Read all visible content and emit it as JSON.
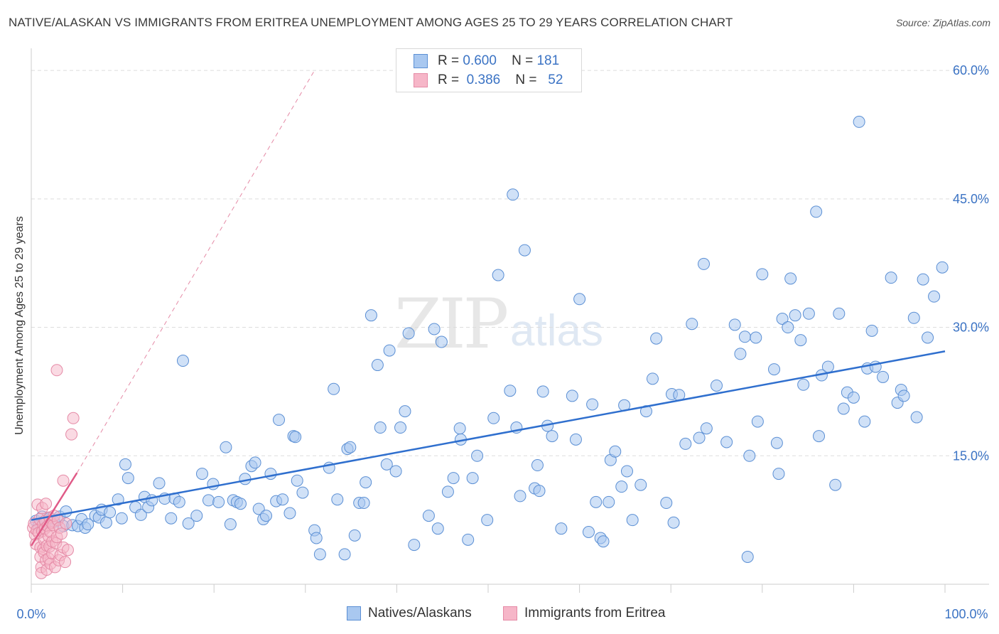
{
  "header": {
    "title": "NATIVE/ALASKAN VS IMMIGRANTS FROM ERITREA UNEMPLOYMENT AMONG AGES 25 TO 29 YEARS CORRELATION CHART",
    "source": "Source: ZipAtlas.com"
  },
  "watermark": {
    "part1": "ZIP",
    "part2": "atlas"
  },
  "legend_top": {
    "rows": [
      {
        "r_label": "R =",
        "r_value": "0.600",
        "n_label": "N =",
        "n_value": "181"
      },
      {
        "r_label": "R =",
        "r_value": "0.386",
        "n_label": "N =",
        "n_value": "52"
      }
    ]
  },
  "colors": {
    "blue_fill": "#a9c8f0",
    "blue_stroke": "#5b8fd4",
    "blue_line": "#2f6fce",
    "pink_fill": "#f6b6c8",
    "pink_stroke": "#e58aa6",
    "pink_line": "#e05a87",
    "grid": "#dddddd",
    "tick_label": "#3b73c4"
  },
  "chart_data": {
    "type": "scatter",
    "title": "NATIVE/ALASKAN VS IMMIGRANTS FROM ERITREA UNEMPLOYMENT AMONG AGES 25 TO 29 YEARS CORRELATION CHART",
    "xlabel": "",
    "ylabel": "Unemployment Among Ages 25 to 29 years",
    "xlim": [
      0,
      100
    ],
    "ylim": [
      0,
      62
    ],
    "x_tick_labels": [
      "0.0%",
      "100.0%"
    ],
    "y_ticks": [
      15,
      30,
      45,
      60
    ],
    "y_tick_labels": [
      "15.0%",
      "30.0%",
      "45.0%",
      "60.0%"
    ],
    "grid": true,
    "legend_position": "bottom",
    "series": [
      {
        "name": "Natives/Alaskans",
        "trend": {
          "x": [
            0,
            100
          ],
          "y": [
            7.5,
            27.2
          ],
          "style": "solid"
        },
        "points": [
          [
            0.5,
            7.4
          ],
          [
            0.8,
            6.8
          ],
          [
            1.2,
            7.9
          ],
          [
            1.6,
            7.2
          ],
          [
            2.0,
            7.7
          ],
          [
            2.5,
            7.3
          ],
          [
            3.1,
            7.9
          ],
          [
            3.5,
            6.8
          ],
          [
            3.8,
            8.5
          ],
          [
            4.5,
            6.9
          ],
          [
            5.1,
            6.8
          ],
          [
            5.5,
            7.6
          ],
          [
            5.9,
            6.6
          ],
          [
            6.2,
            7.0
          ],
          [
            7.0,
            8.0
          ],
          [
            7.4,
            7.8
          ],
          [
            7.7,
            8.7
          ],
          [
            8.2,
            7.2
          ],
          [
            8.6,
            8.4
          ],
          [
            9.5,
            9.9
          ],
          [
            9.9,
            7.7
          ],
          [
            10.3,
            14.0
          ],
          [
            10.6,
            12.4
          ],
          [
            11.4,
            9.0
          ],
          [
            12.0,
            8.1
          ],
          [
            12.4,
            10.2
          ],
          [
            12.8,
            9.0
          ],
          [
            13.2,
            9.8
          ],
          [
            14.0,
            11.8
          ],
          [
            14.6,
            10.0
          ],
          [
            15.3,
            7.7
          ],
          [
            15.7,
            10.0
          ],
          [
            16.2,
            9.6
          ],
          [
            16.6,
            26.1
          ],
          [
            17.2,
            7.1
          ],
          [
            18.1,
            8.0
          ],
          [
            18.7,
            12.9
          ],
          [
            19.4,
            9.8
          ],
          [
            19.9,
            11.7
          ],
          [
            20.5,
            9.6
          ],
          [
            21.3,
            16.0
          ],
          [
            21.8,
            7.0
          ],
          [
            22.1,
            9.8
          ],
          [
            22.5,
            9.6
          ],
          [
            22.9,
            9.4
          ],
          [
            23.4,
            12.3
          ],
          [
            24.1,
            13.8
          ],
          [
            24.5,
            14.2
          ],
          [
            24.9,
            8.8
          ],
          [
            25.4,
            7.6
          ],
          [
            25.7,
            8.0
          ],
          [
            26.2,
            12.9
          ],
          [
            26.8,
            9.7
          ],
          [
            27.1,
            19.2
          ],
          [
            27.5,
            9.9
          ],
          [
            28.3,
            8.3
          ],
          [
            28.7,
            17.3
          ],
          [
            28.9,
            17.2
          ],
          [
            29.1,
            12.1
          ],
          [
            29.7,
            10.7
          ],
          [
            31.0,
            6.3
          ],
          [
            31.2,
            5.4
          ],
          [
            31.6,
            3.5
          ],
          [
            32.6,
            13.6
          ],
          [
            33.1,
            22.8
          ],
          [
            33.5,
            9.9
          ],
          [
            34.3,
            3.5
          ],
          [
            34.6,
            15.8
          ],
          [
            34.9,
            16.0
          ],
          [
            35.4,
            5.7
          ],
          [
            35.9,
            9.5
          ],
          [
            36.4,
            9.5
          ],
          [
            36.6,
            11.9
          ],
          [
            37.2,
            31.4
          ],
          [
            37.9,
            25.6
          ],
          [
            38.2,
            18.3
          ],
          [
            38.9,
            14.0
          ],
          [
            39.2,
            27.3
          ],
          [
            39.9,
            13.2
          ],
          [
            40.4,
            18.3
          ],
          [
            40.9,
            20.2
          ],
          [
            41.3,
            29.3
          ],
          [
            41.9,
            4.6
          ],
          [
            43.5,
            8.0
          ],
          [
            44.1,
            29.8
          ],
          [
            44.5,
            6.5
          ],
          [
            44.9,
            28.3
          ],
          [
            45.6,
            10.8
          ],
          [
            46.2,
            12.4
          ],
          [
            46.9,
            18.2
          ],
          [
            47.0,
            16.9
          ],
          [
            47.8,
            5.2
          ],
          [
            48.3,
            12.4
          ],
          [
            48.8,
            15.0
          ],
          [
            49.9,
            7.5
          ],
          [
            50.6,
            19.4
          ],
          [
            51.1,
            36.1
          ],
          [
            52.4,
            22.6
          ],
          [
            52.7,
            45.5
          ],
          [
            53.1,
            18.3
          ],
          [
            53.5,
            10.3
          ],
          [
            54.0,
            39.0
          ],
          [
            55.1,
            11.2
          ],
          [
            55.4,
            13.9
          ],
          [
            55.6,
            10.9
          ],
          [
            56.0,
            22.5
          ],
          [
            56.5,
            18.5
          ],
          [
            57.0,
            17.3
          ],
          [
            58.0,
            6.5
          ],
          [
            59.2,
            22.0
          ],
          [
            59.6,
            16.9
          ],
          [
            60.0,
            33.3
          ],
          [
            61.0,
            6.1
          ],
          [
            61.4,
            21.0
          ],
          [
            61.8,
            9.6
          ],
          [
            62.3,
            5.4
          ],
          [
            62.6,
            5.0
          ],
          [
            63.2,
            9.6
          ],
          [
            63.4,
            14.5
          ],
          [
            63.9,
            15.5
          ],
          [
            64.6,
            11.4
          ],
          [
            64.9,
            20.9
          ],
          [
            65.2,
            13.2
          ],
          [
            65.8,
            7.5
          ],
          [
            66.7,
            11.6
          ],
          [
            67.3,
            20.2
          ],
          [
            68.0,
            24.0
          ],
          [
            68.4,
            28.7
          ],
          [
            69.5,
            9.5
          ],
          [
            70.1,
            22.2
          ],
          [
            70.3,
            7.2
          ],
          [
            70.9,
            22.1
          ],
          [
            71.6,
            16.4
          ],
          [
            72.3,
            30.4
          ],
          [
            73.1,
            17.1
          ],
          [
            73.6,
            37.4
          ],
          [
            73.9,
            18.2
          ],
          [
            75.0,
            23.2
          ],
          [
            76.1,
            16.6
          ],
          [
            77.0,
            30.3
          ],
          [
            77.6,
            26.9
          ],
          [
            78.1,
            28.9
          ],
          [
            78.4,
            3.2
          ],
          [
            78.6,
            15.0
          ],
          [
            79.3,
            28.8
          ],
          [
            79.5,
            19.0
          ],
          [
            80.0,
            36.2
          ],
          [
            81.3,
            25.1
          ],
          [
            81.6,
            16.5
          ],
          [
            81.8,
            12.9
          ],
          [
            82.2,
            31.0
          ],
          [
            82.8,
            30.0
          ],
          [
            83.1,
            35.7
          ],
          [
            83.6,
            31.4
          ],
          [
            84.2,
            28.5
          ],
          [
            84.5,
            23.3
          ],
          [
            85.1,
            31.6
          ],
          [
            85.9,
            43.5
          ],
          [
            86.2,
            17.3
          ],
          [
            86.5,
            24.4
          ],
          [
            87.2,
            25.4
          ],
          [
            88.0,
            11.6
          ],
          [
            88.4,
            31.6
          ],
          [
            88.9,
            20.5
          ],
          [
            89.3,
            22.4
          ],
          [
            90.0,
            21.8
          ],
          [
            90.6,
            54.0
          ],
          [
            91.2,
            19.0
          ],
          [
            91.5,
            25.2
          ],
          [
            92.0,
            29.6
          ],
          [
            92.4,
            25.4
          ],
          [
            93.2,
            24.2
          ],
          [
            94.1,
            35.8
          ],
          [
            94.8,
            21.2
          ],
          [
            95.2,
            22.7
          ],
          [
            95.5,
            22.0
          ],
          [
            96.6,
            31.1
          ],
          [
            96.9,
            19.5
          ],
          [
            97.6,
            35.6
          ],
          [
            98.1,
            28.8
          ],
          [
            98.8,
            33.6
          ],
          [
            99.7,
            37.0
          ]
        ]
      },
      {
        "name": "Immigrants from Eritrea",
        "trend": {
          "x": [
            0,
            5
          ],
          "y": [
            4.5,
            13.0
          ],
          "style": "solid",
          "extension": {
            "x": [
              5,
              31
            ],
            "y": [
              13.0,
              60.0
            ],
            "style": "dashed"
          }
        },
        "points": [
          [
            0.2,
            6.6
          ],
          [
            0.3,
            7.1
          ],
          [
            0.4,
            5.8
          ],
          [
            0.5,
            4.7
          ],
          [
            0.6,
            6.3
          ],
          [
            0.7,
            9.3
          ],
          [
            0.8,
            6.0
          ],
          [
            0.9,
            7.6
          ],
          [
            1.0,
            4.3
          ],
          [
            1.0,
            3.2
          ],
          [
            1.1,
            2.0
          ],
          [
            1.1,
            1.3
          ],
          [
            1.2,
            6.2
          ],
          [
            1.2,
            8.9
          ],
          [
            1.3,
            7.0
          ],
          [
            1.3,
            4.1
          ],
          [
            1.4,
            5.2
          ],
          [
            1.4,
            3.7
          ],
          [
            1.5,
            7.4
          ],
          [
            1.5,
            6.5
          ],
          [
            1.6,
            9.4
          ],
          [
            1.6,
            2.8
          ],
          [
            1.7,
            4.5
          ],
          [
            1.7,
            1.7
          ],
          [
            1.8,
            6.8
          ],
          [
            1.9,
            5.6
          ],
          [
            1.9,
            3.0
          ],
          [
            2.0,
            7.8
          ],
          [
            2.0,
            4.4
          ],
          [
            2.1,
            6.1
          ],
          [
            2.1,
            2.4
          ],
          [
            2.2,
            7.2
          ],
          [
            2.3,
            3.6
          ],
          [
            2.3,
            5.0
          ],
          [
            2.4,
            6.9
          ],
          [
            2.5,
            8.0
          ],
          [
            2.6,
            2.0
          ],
          [
            2.7,
            4.8
          ],
          [
            2.8,
            25.0
          ],
          [
            2.8,
            5.5
          ],
          [
            2.9,
            7.5
          ],
          [
            3.0,
            2.8
          ],
          [
            3.1,
            6.6
          ],
          [
            3.2,
            3.4
          ],
          [
            3.3,
            5.9
          ],
          [
            3.5,
            4.3
          ],
          [
            3.5,
            12.1
          ],
          [
            3.7,
            2.6
          ],
          [
            3.8,
            7.1
          ],
          [
            4.0,
            4.0
          ],
          [
            4.4,
            17.5
          ],
          [
            4.6,
            19.4
          ]
        ]
      }
    ]
  },
  "legend_bottom": [
    {
      "label": "Natives/Alaskans"
    },
    {
      "label": "Immigrants from Eritrea"
    }
  ]
}
